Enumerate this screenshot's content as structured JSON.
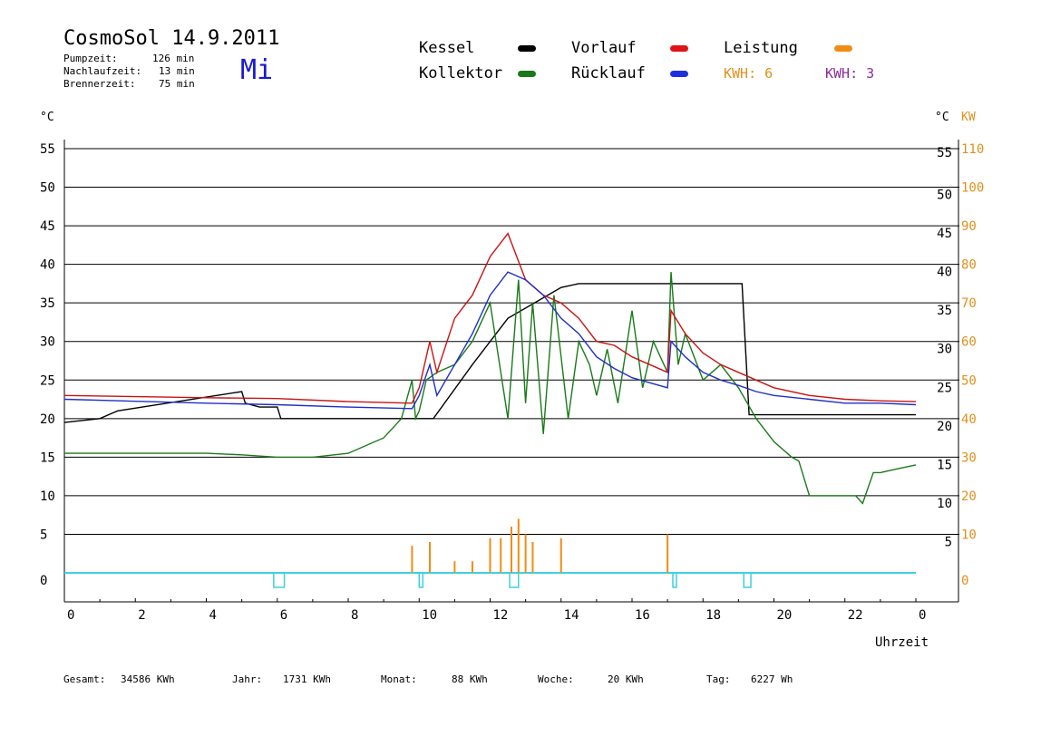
{
  "header": {
    "title": "CosmoSol 14.9.2011",
    "day": "Mi",
    "stats": [
      {
        "label": "Pumpzeit:",
        "value": "126 min"
      },
      {
        "label": "Nachlaufzeit:",
        "value": "13 min"
      },
      {
        "label": "Brennerzeit:",
        "value": "75 min"
      }
    ]
  },
  "legend": {
    "kessel": "Kessel",
    "kollektor": "Kollektor",
    "vorlauf": "Vorlauf",
    "ruecklauf": "Rücklauf",
    "leistung": "Leistung",
    "kwh1": "KWH: 6",
    "kwh2": "KWH: 3"
  },
  "colors": {
    "kessel": "#000000",
    "kollektor": "#1a7a1a",
    "vorlauf": "#c81414",
    "ruecklauf": "#1f2fc8",
    "leistung": "#f08c14",
    "leistung2": "#7a1f8c",
    "pump": "#3fd0e0",
    "axis_right_kw": "#e0901c"
  },
  "axes": {
    "left_unit": "°C",
    "right_unit": "°C",
    "kw_unit": "KW",
    "xlabel": "Uhrzeit"
  },
  "footer": {
    "gesamt_label": "Gesamt:",
    "gesamt_value": "34586 KWh",
    "jahr_label": "Jahr:",
    "jahr_value": "1731 KWh",
    "monat_label": "Monat:",
    "monat_value": "88 KWh",
    "woche_label": "Woche:",
    "woche_value": "20 KWh",
    "tag_label": "Tag:",
    "tag_value": "6227 Wh"
  },
  "chart_data": {
    "type": "line",
    "xlim": [
      0,
      24
    ],
    "ylim": [
      0,
      55
    ],
    "x_tick_labels": [
      "0",
      "2",
      "4",
      "6",
      "8",
      "10",
      "12",
      "14",
      "16",
      "18",
      "20",
      "22",
      "0"
    ],
    "y_ticks_left": [
      0,
      5,
      10,
      15,
      20,
      25,
      30,
      35,
      40,
      45,
      50,
      55
    ],
    "y_ticks_right": [
      5,
      10,
      15,
      20,
      25,
      30,
      35,
      40,
      45,
      50,
      55
    ],
    "y_ticks_kw": [
      0,
      10,
      20,
      30,
      40,
      50,
      60,
      70,
      80,
      90,
      100,
      110
    ],
    "grid": "horizontal",
    "series": [
      {
        "name": "Kessel",
        "x": [
          0,
          1,
          1.5,
          5,
          5.1,
          5.5,
          6,
          6.1,
          10.3,
          10.4,
          11.5,
          12.5,
          14,
          14.5,
          19.1,
          19.3,
          24
        ],
        "y": [
          19.5,
          20,
          21,
          23.5,
          22,
          21.5,
          21.5,
          20,
          20,
          20,
          27,
          33,
          37,
          37.5,
          37.5,
          20.5,
          20.5
        ]
      },
      {
        "name": "Kollektor",
        "x": [
          0,
          2,
          4,
          5,
          6,
          7,
          8,
          9,
          9.5,
          9.8,
          9.9,
          10,
          10.2,
          10.5,
          11,
          11.5,
          12,
          12.5,
          12.8,
          13,
          13.2,
          13.5,
          13.8,
          14,
          14.2,
          14.5,
          14.8,
          15,
          15.3,
          15.6,
          16,
          16.3,
          16.6,
          17,
          17.1,
          17.3,
          17.5,
          18,
          18.5,
          19,
          19.5,
          20,
          20.5,
          20.7,
          21,
          22,
          22.3,
          22.5,
          22.8,
          23,
          23.5,
          24
        ],
        "y": [
          15.5,
          15.5,
          15.5,
          15.3,
          15,
          15,
          15.5,
          17.5,
          20,
          25,
          20,
          21,
          25,
          26,
          27,
          30,
          35,
          20,
          38,
          22,
          35,
          18,
          36,
          28,
          20,
          30,
          27,
          23,
          29,
          22,
          34,
          24,
          30,
          26,
          39,
          27,
          31,
          25,
          27,
          24,
          20,
          17,
          15,
          14.5,
          10,
          10,
          10,
          9,
          13,
          13,
          13.5,
          14
        ]
      },
      {
        "name": "Vorlauf",
        "x": [
          0,
          4,
          6,
          8,
          9.8,
          10,
          10.3,
          10.5,
          11,
          11.5,
          12,
          12.5,
          13,
          13.5,
          14,
          14.5,
          15,
          15.5,
          16,
          17,
          17.1,
          17.5,
          18,
          18.5,
          19,
          19.5,
          20,
          21,
          22,
          23,
          24
        ],
        "y": [
          23,
          22.7,
          22.6,
          22.2,
          22,
          24,
          30,
          26,
          33,
          36,
          41,
          44,
          38,
          36,
          35,
          33,
          30,
          29.5,
          28,
          26,
          34,
          31,
          28.5,
          27,
          26,
          25,
          24,
          23,
          22.5,
          22.3,
          22.2
        ]
      },
      {
        "name": "Rücklauf",
        "x": [
          0,
          4,
          6,
          8,
          9.8,
          10,
          10.3,
          10.5,
          11,
          11.5,
          12,
          12.5,
          13,
          13.5,
          14,
          14.5,
          15,
          15.5,
          16,
          17,
          17.1,
          17.5,
          18,
          18.5,
          19,
          19.5,
          20,
          21,
          22,
          23,
          24
        ],
        "y": [
          22.5,
          22,
          21.8,
          21.5,
          21.3,
          23,
          27,
          23,
          27,
          31,
          36,
          39,
          38,
          36,
          33,
          31,
          28,
          26.5,
          25.3,
          24,
          30,
          28,
          26,
          25,
          24.3,
          23.5,
          23,
          22.5,
          22,
          22,
          21.8
        ]
      }
    ],
    "bars_leistung": [
      {
        "x": 9.8,
        "y": 3.5
      },
      {
        "x": 10.3,
        "y": 4
      },
      {
        "x": 11,
        "y": 1.5
      },
      {
        "x": 11.5,
        "y": 1.5
      },
      {
        "x": 12,
        "y": 4.5
      },
      {
        "x": 12.3,
        "y": 4.5
      },
      {
        "x": 12.6,
        "y": 6
      },
      {
        "x": 12.8,
        "y": 7
      },
      {
        "x": 13,
        "y": 5
      },
      {
        "x": 13.2,
        "y": 4
      },
      {
        "x": 14,
        "y": 4.5
      },
      {
        "x": 17,
        "y": 5
      }
    ],
    "pump_pulses": [
      [
        5.9,
        6.2
      ],
      [
        10.0,
        10.05
      ],
      [
        12.55,
        12.8
      ],
      [
        17.15,
        17.25
      ],
      [
        19.15,
        19.35
      ]
    ]
  }
}
